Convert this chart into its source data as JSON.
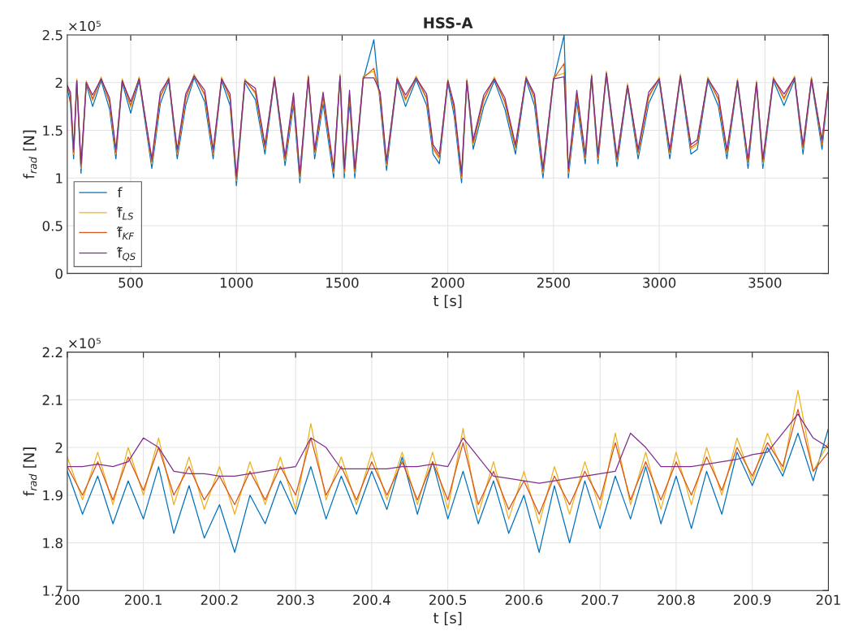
{
  "chart_data": [
    {
      "type": "line",
      "title": "HSS-A",
      "xlabel": "t [s]",
      "ylabel": "f$_{rad}$ [N]",
      "annotations": [
        "×10⁵"
      ],
      "x": [
        200,
        215,
        230,
        245,
        265,
        290,
        320,
        360,
        400,
        430,
        460,
        500,
        540,
        600,
        640,
        680,
        720,
        760,
        800,
        850,
        890,
        930,
        970,
        1000,
        1040,
        1090,
        1135,
        1180,
        1230,
        1270,
        1300,
        1340,
        1370,
        1410,
        1460,
        1490,
        1510,
        1535,
        1560,
        1600,
        1650,
        1680,
        1710,
        1760,
        1800,
        1850,
        1900,
        1930,
        1960,
        2000,
        2030,
        2065,
        2090,
        2120,
        2170,
        2220,
        2270,
        2320,
        2370,
        2410,
        2450,
        2500,
        2550,
        2570,
        2610,
        2650,
        2680,
        2710,
        2750,
        2800,
        2850,
        2900,
        2950,
        3000,
        3050,
        3100,
        3150,
        3180,
        3230,
        3280,
        3320,
        3370,
        3420,
        3460,
        3490,
        3540,
        3590,
        3640,
        3680,
        3720,
        3770,
        3800
      ],
      "series": [
        {
          "name": "f",
          "color": "#0072bd",
          "values": [
            1.95,
            1.78,
            1.2,
            2.0,
            1.05,
            1.98,
            1.75,
            2.02,
            1.72,
            1.2,
            2.0,
            1.68,
            2.02,
            1.1,
            1.78,
            2.02,
            1.2,
            1.76,
            2.05,
            1.8,
            1.2,
            2.02,
            1.76,
            0.92,
            2.0,
            1.82,
            1.25,
            2.03,
            1.13,
            1.77,
            0.95,
            2.04,
            1.2,
            1.78,
            1.0,
            2.05,
            1.0,
            1.8,
            1.0,
            2.03,
            2.45,
            1.78,
            1.08,
            2.02,
            1.75,
            2.03,
            1.76,
            1.25,
            1.15,
            2.0,
            1.65,
            0.95,
            2.0,
            1.3,
            1.75,
            2.02,
            1.72,
            1.25,
            2.03,
            1.76,
            1.0,
            2.02,
            2.5,
            1.0,
            1.8,
            1.15,
            2.05,
            1.15,
            2.08,
            1.12,
            1.95,
            1.2,
            1.78,
            2.02,
            1.2,
            2.05,
            1.25,
            1.3,
            2.02,
            1.75,
            1.2,
            2.0,
            1.1,
            1.98,
            1.1,
            2.02,
            1.76,
            2.03,
            1.25,
            2.02,
            1.3,
            1.95
          ]
        },
        {
          "name": "f̂$_{LS}$",
          "color": "#edb120",
          "values": [
            1.99,
            1.84,
            1.25,
            2.04,
            1.1,
            2.02,
            1.81,
            2.06,
            1.78,
            1.25,
            2.04,
            1.74,
            2.06,
            1.15,
            1.84,
            2.06,
            1.25,
            1.82,
            2.09,
            1.86,
            1.25,
            2.06,
            1.82,
            0.97,
            2.04,
            1.88,
            1.3,
            2.07,
            1.18,
            1.83,
            1.0,
            2.08,
            1.25,
            1.84,
            1.05,
            2.09,
            1.05,
            1.86,
            1.05,
            2.07,
            2.12,
            1.84,
            1.13,
            2.06,
            1.81,
            2.07,
            1.82,
            1.3,
            1.2,
            2.04,
            1.71,
            1.0,
            2.04,
            1.35,
            1.81,
            2.06,
            1.78,
            1.3,
            2.07,
            1.82,
            1.05,
            2.06,
            2.1,
            1.05,
            1.86,
            1.2,
            2.09,
            1.2,
            2.12,
            1.17,
            1.99,
            1.25,
            1.84,
            2.06,
            1.25,
            2.09,
            1.3,
            1.35,
            2.06,
            1.81,
            1.25,
            2.04,
            1.15,
            2.02,
            1.15,
            2.06,
            1.82,
            2.07,
            1.3,
            2.06,
            1.35,
            1.99
          ]
        },
        {
          "name": "f̂$_{KF}$",
          "color": "#d95319",
          "values": [
            1.97,
            1.86,
            1.27,
            2.02,
            1.12,
            2.0,
            1.83,
            2.04,
            1.8,
            1.27,
            2.02,
            1.76,
            2.04,
            1.17,
            1.86,
            2.04,
            1.27,
            1.84,
            2.07,
            1.88,
            1.27,
            2.04,
            1.84,
            0.99,
            2.02,
            1.9,
            1.32,
            2.05,
            1.2,
            1.85,
            1.02,
            2.06,
            1.27,
            1.86,
            1.07,
            2.07,
            1.07,
            1.88,
            1.07,
            2.05,
            2.15,
            1.86,
            1.15,
            2.04,
            1.83,
            2.05,
            1.84,
            1.32,
            1.22,
            2.02,
            1.73,
            1.02,
            2.02,
            1.37,
            1.83,
            2.04,
            1.8,
            1.32,
            2.05,
            1.84,
            1.07,
            2.04,
            2.2,
            1.07,
            1.88,
            1.22,
            2.07,
            1.22,
            2.1,
            1.19,
            1.97,
            1.27,
            1.86,
            2.04,
            1.27,
            2.07,
            1.32,
            1.37,
            2.04,
            1.83,
            1.27,
            2.02,
            1.17,
            2.0,
            1.17,
            2.04,
            1.84,
            2.05,
            1.32,
            2.04,
            1.37,
            1.97
          ]
        },
        {
          "name": "f̂$_{QS}$",
          "color": "#7e2f8e",
          "values": [
            1.97,
            1.9,
            1.3,
            2.02,
            1.15,
            2.0,
            1.87,
            2.04,
            1.84,
            1.3,
            2.02,
            1.8,
            2.04,
            1.2,
            1.9,
            2.04,
            1.3,
            1.88,
            2.07,
            1.92,
            1.3,
            2.04,
            1.88,
            1.02,
            2.02,
            1.94,
            1.35,
            2.05,
            1.23,
            1.89,
            1.05,
            2.06,
            1.3,
            1.9,
            1.1,
            2.07,
            1.1,
            1.92,
            1.1,
            2.05,
            2.05,
            1.9,
            1.18,
            2.04,
            1.87,
            2.05,
            1.88,
            1.35,
            1.25,
            2.02,
            1.77,
            1.05,
            2.02,
            1.4,
            1.87,
            2.04,
            1.84,
            1.35,
            2.05,
            1.88,
            1.1,
            2.04,
            2.06,
            1.1,
            1.92,
            1.25,
            2.07,
            1.25,
            2.1,
            1.22,
            1.97,
            1.3,
            1.9,
            2.04,
            1.3,
            2.07,
            1.35,
            1.4,
            2.04,
            1.87,
            1.3,
            2.02,
            1.2,
            2.0,
            1.2,
            2.04,
            1.88,
            2.05,
            1.35,
            2.04,
            1.4,
            1.97
          ]
        }
      ],
      "xlim": [
        200,
        3800
      ],
      "xticks": [
        500,
        1000,
        1500,
        2000,
        2500,
        3000,
        3500
      ],
      "ylim": [
        0,
        2.5
      ],
      "yticks": [
        0,
        0.5,
        1,
        1.5,
        2,
        2.5
      ],
      "grid": true,
      "legend": "bottom left",
      "line_style": "solid"
    },
    {
      "type": "line",
      "xlabel": "t [s]",
      "ylabel": "f$_{rad}$ [N]",
      "annotations": [
        "×10⁵"
      ],
      "x": [
        200,
        200.02,
        200.04,
        200.06,
        200.08,
        200.1,
        200.12,
        200.14,
        200.16,
        200.18,
        200.2,
        200.22,
        200.24,
        200.26,
        200.28,
        200.3,
        200.32,
        200.34,
        200.36,
        200.38,
        200.4,
        200.42,
        200.44,
        200.46,
        200.48,
        200.5,
        200.52,
        200.54,
        200.56,
        200.58,
        200.6,
        200.62,
        200.64,
        200.66,
        200.68,
        200.7,
        200.72,
        200.74,
        200.76,
        200.78,
        200.8,
        200.82,
        200.84,
        200.86,
        200.88,
        200.9,
        200.92,
        200.94,
        200.96,
        200.98,
        201
      ],
      "series": [
        {
          "color": "#0072bd",
          "values": [
            1.95,
            1.86,
            1.94,
            1.84,
            1.93,
            1.85,
            1.96,
            1.82,
            1.92,
            1.81,
            1.88,
            1.78,
            1.9,
            1.84,
            1.93,
            1.86,
            1.96,
            1.85,
            1.94,
            1.86,
            1.95,
            1.87,
            1.98,
            1.86,
            1.97,
            1.85,
            1.95,
            1.84,
            1.93,
            1.82,
            1.9,
            1.78,
            1.92,
            1.8,
            1.93,
            1.83,
            1.94,
            1.85,
            1.96,
            1.84,
            1.94,
            1.83,
            1.95,
            1.86,
            1.99,
            1.92,
            2.0,
            1.94,
            2.03,
            1.93,
            2.04
          ]
        },
        {
          "color": "#edb120",
          "values": [
            1.98,
            1.89,
            1.99,
            1.88,
            2.0,
            1.9,
            2.02,
            1.88,
            1.98,
            1.87,
            1.96,
            1.86,
            1.97,
            1.88,
            1.98,
            1.87,
            2.05,
            1.89,
            1.98,
            1.88,
            1.99,
            1.89,
            1.99,
            1.88,
            1.99,
            1.87,
            2.04,
            1.86,
            1.97,
            1.85,
            1.95,
            1.84,
            1.96,
            1.86,
            1.97,
            1.87,
            2.03,
            1.88,
            1.99,
            1.87,
            1.99,
            1.88,
            2.0,
            1.9,
            2.02,
            1.93,
            2.03,
            1.95,
            2.12,
            1.95,
            2.01
          ]
        },
        {
          "color": "#d95319",
          "values": [
            1.96,
            1.9,
            1.97,
            1.89,
            1.98,
            1.91,
            2.0,
            1.9,
            1.96,
            1.89,
            1.94,
            1.88,
            1.95,
            1.89,
            1.96,
            1.9,
            2.02,
            1.9,
            1.96,
            1.89,
            1.97,
            1.9,
            1.97,
            1.89,
            1.97,
            1.89,
            2.01,
            1.88,
            1.95,
            1.87,
            1.93,
            1.86,
            1.94,
            1.88,
            1.95,
            1.89,
            2.01,
            1.89,
            1.97,
            1.89,
            1.97,
            1.9,
            1.98,
            1.91,
            2.0,
            1.94,
            2.01,
            1.96,
            2.08,
            1.95,
            1.99
          ]
        },
        {
          "color": "#7e2f8e",
          "values": [
            1.96,
            1.96,
            1.965,
            1.96,
            1.97,
            2.02,
            2.0,
            1.95,
            1.945,
            1.945,
            1.94,
            1.94,
            1.945,
            1.95,
            1.955,
            1.96,
            2.02,
            2.0,
            1.955,
            1.955,
            1.955,
            1.955,
            1.96,
            1.96,
            1.965,
            1.96,
            2.02,
            1.98,
            1.94,
            1.935,
            1.93,
            1.925,
            1.93,
            1.935,
            1.94,
            1.945,
            1.95,
            2.03,
            2.0,
            1.96,
            1.96,
            1.96,
            1.965,
            1.97,
            1.975,
            1.985,
            1.99,
            2.03,
            2.07,
            2.02,
            2.0
          ]
        }
      ],
      "xlim": [
        200,
        201
      ],
      "xticks": [
        200,
        200.1,
        200.2,
        200.3,
        200.4,
        200.5,
        200.6,
        200.7,
        200.8,
        200.9,
        201
      ],
      "ylim": [
        1.7,
        2.2
      ],
      "yticks": [
        1.7,
        1.8,
        1.9,
        2,
        2.1,
        2.2
      ],
      "grid": true,
      "line_style": "solid"
    }
  ]
}
